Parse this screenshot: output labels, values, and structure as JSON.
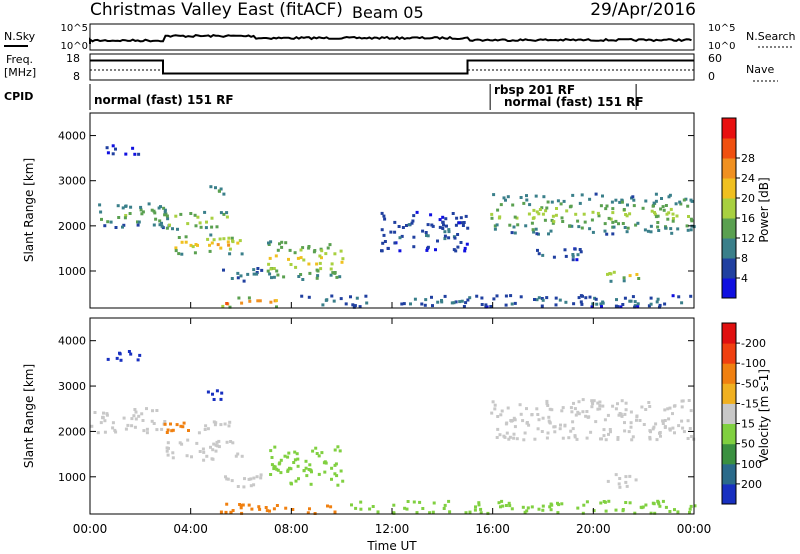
{
  "header": {
    "title": "Christmas Valley East (fitACF)",
    "beam": "Beam 05",
    "date": "29/Apr/2016"
  },
  "top_panels": {
    "nsky_label": "N.Sky",
    "nsearch_label": "N.Search",
    "noise_ticks": [
      "10^5",
      "10^0"
    ],
    "freq_label_line1": "Freq.",
    "freq_label_line2": "[MHz]",
    "freq_ticks": [
      "18",
      "8"
    ],
    "nave_label": "Nave",
    "nave_ticks": [
      "60",
      "0"
    ],
    "cpid_label": "CPID",
    "cpid_segments": [
      {
        "label": "normal (fast) 151 RF",
        "start_hour": 0.0,
        "end_hour": 15.9
      },
      {
        "label": "rbsp 201 RF",
        "start_hour": 15.9,
        "end_hour": 21.7
      },
      {
        "label": "normal (fast) 151 RF",
        "start_hour": 16.3,
        "end_hour": 21.7
      }
    ],
    "frequency_steps": [
      {
        "start_hour": 0.0,
        "end_hour": 2.9,
        "mhz": 15.5
      },
      {
        "start_hour": 2.9,
        "end_hour": 15.0,
        "mhz": 10.5
      },
      {
        "start_hour": 15.0,
        "end_hour": 24.0,
        "mhz": 15.5
      }
    ]
  },
  "chart_data": [
    {
      "type": "heatmap",
      "name": "Power",
      "ylabel": "Slant Range [km]",
      "xlabel": "Time UT",
      "xlim": [
        0,
        24
      ],
      "ylim": [
        180,
        4500
      ],
      "x_ticks": [
        "00:00",
        "04:00",
        "08:00",
        "12:00",
        "16:00",
        "20:00",
        "00:00"
      ],
      "y_ticks": [
        1000,
        2000,
        3000,
        4000
      ],
      "colorbar_label": "Power [dB]",
      "colorbar_ticks": [
        "4",
        "8",
        "12",
        "16",
        "20",
        "24",
        "28"
      ],
      "colorbar_colors": [
        "#1010e0",
        "#2040a0",
        "#3a7f8a",
        "#5aa050",
        "#a8d040",
        "#f0c020",
        "#f09020",
        "#f05010",
        "#e81010"
      ],
      "regions": [
        {
          "t0": 0.0,
          "t1": 3.1,
          "r0": 1950,
          "r1": 2500,
          "level": 16
        },
        {
          "t0": 2.9,
          "t1": 5.5,
          "r0": 1900,
          "r1": 2300,
          "level": 22
        },
        {
          "t0": 3.0,
          "t1": 6.0,
          "r0": 1350,
          "r1": 1800,
          "level": 24
        },
        {
          "t0": 4.5,
          "t1": 5.3,
          "r0": 2600,
          "r1": 2900,
          "level": 14
        },
        {
          "t0": 5.2,
          "t1": 7.2,
          "r0": 750,
          "r1": 1050,
          "level": 12
        },
        {
          "t0": 7.0,
          "t1": 10.0,
          "r0": 800,
          "r1": 1650,
          "level": 22
        },
        {
          "t0": 5.0,
          "t1": 7.5,
          "r0": 180,
          "r1": 400,
          "level": 30
        },
        {
          "t0": 11.5,
          "t1": 15.0,
          "r0": 1400,
          "r1": 2300,
          "level": 8
        },
        {
          "t0": 15.9,
          "t1": 24.0,
          "r0": 1800,
          "r1": 2700,
          "level": 18
        },
        {
          "t0": 17.5,
          "t1": 19.5,
          "r0": 1200,
          "r1": 1500,
          "level": 8
        },
        {
          "t0": 20.5,
          "t1": 21.8,
          "r0": 750,
          "r1": 1050,
          "level": 20
        },
        {
          "t0": 8.0,
          "t1": 24.0,
          "r0": 180,
          "r1": 450,
          "level": 10
        },
        {
          "t0": 0.5,
          "t1": 2.0,
          "r0": 3550,
          "r1": 3800,
          "level": 6
        }
      ]
    },
    {
      "type": "heatmap",
      "name": "Velocity",
      "ylabel": "Slant Range [km]",
      "xlabel": "Time UT",
      "xlim": [
        0,
        24
      ],
      "ylim": [
        180,
        4500
      ],
      "x_ticks": [
        "00:00",
        "04:00",
        "08:00",
        "12:00",
        "16:00",
        "20:00",
        "00:00"
      ],
      "y_ticks": [
        1000,
        2000,
        3000,
        4000
      ],
      "colorbar_label": "Velocity [m s-1]",
      "colorbar_ticks": [
        "200",
        "100",
        "50",
        "15",
        "-15",
        "-50",
        "-100",
        "-200"
      ],
      "colorbar_colors": [
        "#1830c0",
        "#2a6a8a",
        "#3a9040",
        "#80d040",
        "#c8c8c8",
        "#f0b020",
        "#f08010",
        "#f04010",
        "#e01010"
      ],
      "regions": [
        {
          "t0": 0.0,
          "t1": 3.0,
          "r0": 1950,
          "r1": 2500,
          "vel": 0
        },
        {
          "t0": 2.9,
          "t1": 4.2,
          "r0": 1950,
          "r1": 2300,
          "vel": -60
        },
        {
          "t0": 4.2,
          "t1": 5.5,
          "r0": 1950,
          "r1": 2300,
          "vel": 0
        },
        {
          "t0": 2.9,
          "t1": 6.0,
          "r0": 1350,
          "r1": 1800,
          "vel": 0
        },
        {
          "t0": 4.5,
          "t1": 5.3,
          "r0": 2600,
          "r1": 2900,
          "vel": 220
        },
        {
          "t0": 7.0,
          "t1": 10.0,
          "r0": 800,
          "r1": 1650,
          "vel": 40
        },
        {
          "t0": 5.2,
          "t1": 7.2,
          "r0": 750,
          "r1": 1050,
          "vel": 0
        },
        {
          "t0": 15.9,
          "t1": 24.0,
          "r0": 1800,
          "r1": 2700,
          "vel": 0
        },
        {
          "t0": 20.5,
          "t1": 21.8,
          "r0": 750,
          "r1": 1050,
          "vel": 0
        },
        {
          "t0": 5.0,
          "t1": 10.0,
          "r0": 180,
          "r1": 400,
          "vel": -60
        },
        {
          "t0": 10.0,
          "t1": 24.0,
          "r0": 180,
          "r1": 450,
          "vel": 40
        },
        {
          "t0": 0.5,
          "t1": 2.0,
          "r0": 3550,
          "r1": 3800,
          "vel": 220
        }
      ]
    }
  ]
}
